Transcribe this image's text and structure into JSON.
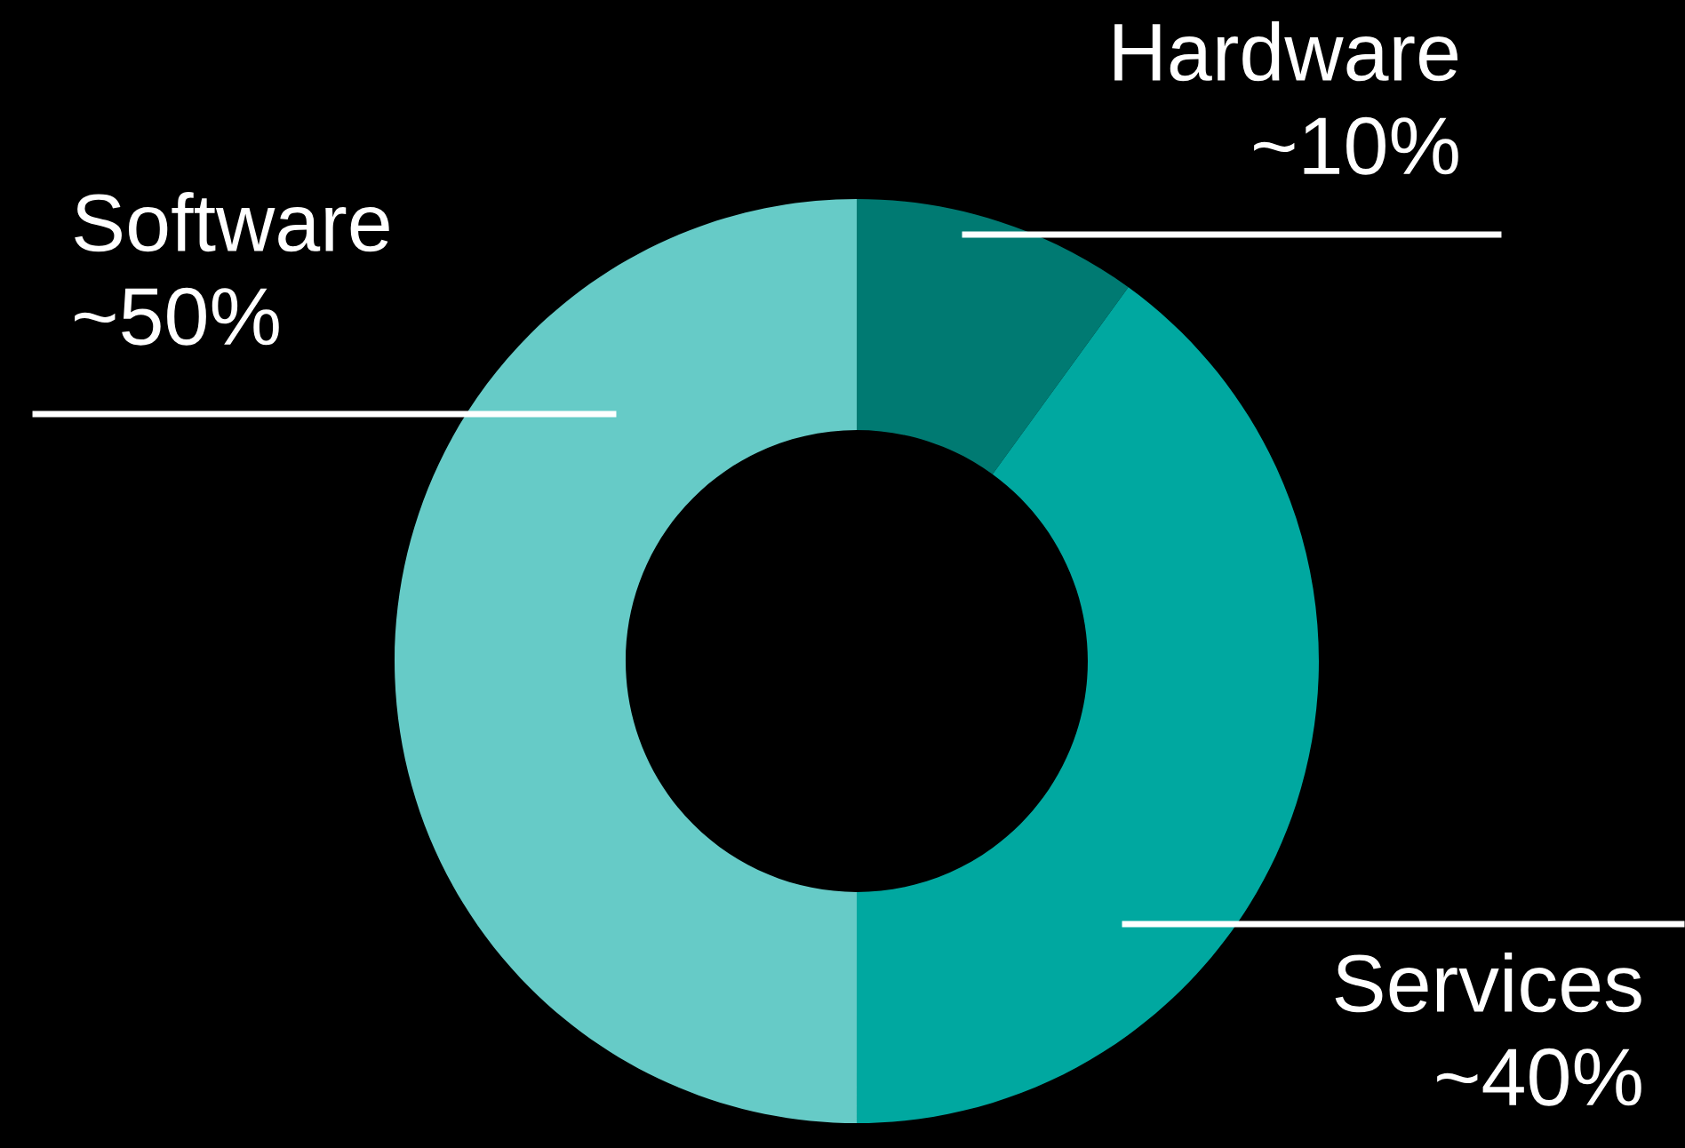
{
  "chart_data": {
    "type": "donut",
    "categories": [
      "Hardware",
      "Services",
      "Software"
    ],
    "values": [
      10,
      40,
      50
    ],
    "value_labels": [
      "~10%",
      "~40%",
      "~50%"
    ],
    "colors": [
      "#007a72",
      "#00a8a0",
      "#66cbc7"
    ],
    "legend": false
  }
}
